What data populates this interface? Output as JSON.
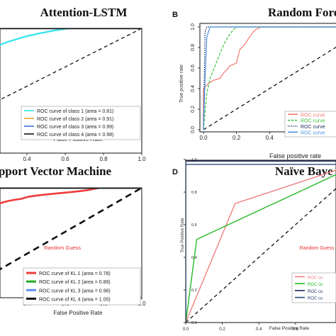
{
  "chart_data": [
    {
      "type": "line",
      "panel_label": "",
      "title": "Attention-LSTM",
      "xlabel": "False Positive Rate",
      "ylabel": "",
      "xlim": [
        0,
        1
      ],
      "ylim": [
        0,
        1
      ],
      "x_tick_labels": [
        "0.4",
        "0.6",
        "0.8",
        "1.0"
      ],
      "x_ticks": [
        0.4,
        0.6,
        0.8,
        1.0
      ],
      "series": [
        {
          "name": "ROC curve of class 1 (area = 0.81)",
          "color": "#2fe3ef",
          "x": [
            0,
            0.02,
            0.05,
            0.08,
            0.1,
            0.13,
            0.16,
            0.2,
            0.25,
            0.3,
            0.35,
            0.4,
            0.47,
            0.55,
            0.62,
            0.7,
            1.0
          ],
          "y": [
            0.62,
            0.64,
            0.66,
            0.68,
            0.69,
            0.72,
            0.75,
            0.78,
            0.82,
            0.86,
            0.89,
            0.92,
            0.95,
            0.98,
            1.0,
            1.0,
            1.0
          ]
        },
        {
          "name": "ROC curve of class 2 (area = 0.91)",
          "color": "#f0a030",
          "x": [
            0,
            0.02,
            1.0
          ],
          "y": [
            0.98,
            1.0,
            1.0
          ]
        },
        {
          "name": "ROC curve of class 3 (area = 0.99)",
          "color": "#3a6fd8",
          "x": [
            0,
            0.01,
            1.0
          ],
          "y": [
            0.99,
            1.0,
            1.0
          ]
        },
        {
          "name": "ROC curve of class 4 (area = 0.98)",
          "color": "#111111",
          "x": [
            0,
            0.01,
            1.0
          ],
          "y": [
            0.99,
            1.0,
            1.0
          ]
        }
      ],
      "diagonal": true,
      "legend": "bottom-right"
    },
    {
      "type": "line",
      "panel_label": "B",
      "title": "Random Fore",
      "xlabel": "False positive rate",
      "ylabel": "True positive rate",
      "xlim": [
        0,
        1
      ],
      "ylim": [
        0,
        1
      ],
      "x_tick_labels": [
        "0.0",
        "0.2",
        "0.4"
      ],
      "x_ticks": [
        0.0,
        0.2,
        0.4
      ],
      "y_tick_labels": [
        "0.0",
        "0.2",
        "0.4",
        "0.6",
        "0.8",
        "1.0"
      ],
      "y_ticks": [
        0.0,
        0.2,
        0.4,
        0.6,
        0.8,
        1.0
      ],
      "series": [
        {
          "name": "ROC curve",
          "color": "#f27a6e",
          "style": "solid",
          "x": [
            0,
            0.0,
            0.03,
            0.06,
            0.1,
            0.12,
            0.14,
            0.16,
            0.2,
            0.22,
            0.25,
            0.27,
            0.3,
            0.32,
            0.35,
            1.0
          ],
          "y": [
            0.0,
            0.4,
            0.45,
            0.48,
            0.5,
            0.55,
            0.58,
            0.62,
            0.65,
            0.78,
            0.83,
            0.88,
            0.95,
            0.98,
            1.0,
            1.0
          ]
        },
        {
          "name": "ROC curve",
          "color": "#3cc23c",
          "style": "dashed",
          "x": [
            0,
            0.02,
            0.04,
            0.06,
            0.08,
            0.1,
            0.12,
            0.14,
            0.16,
            0.18,
            0.2,
            1.0
          ],
          "y": [
            0,
            0.35,
            0.5,
            0.58,
            0.66,
            0.74,
            0.82,
            0.88,
            0.93,
            0.97,
            1.0,
            1.0
          ]
        },
        {
          "name": "ROC curve",
          "color": "#1a2a5a",
          "style": "dotted",
          "x": [
            0,
            0.01,
            0.02,
            1.0
          ],
          "y": [
            0,
            0.95,
            1.0,
            1.0
          ]
        },
        {
          "name": "ROC curve",
          "color": "#4a90e0",
          "style": "solid",
          "x": [
            0,
            0.01,
            0.02,
            0.04,
            1.0
          ],
          "y": [
            0,
            0.5,
            0.9,
            1.0,
            1.0
          ]
        }
      ],
      "diagonal": true,
      "legend": "bottom-right"
    },
    {
      "type": "line",
      "panel_label": "",
      "title": "Support Vector Machine",
      "xlabel": "False Positive Rate",
      "ylabel": "",
      "xlim": [
        0,
        1
      ],
      "ylim": [
        0,
        1
      ],
      "x_tick_labels": [
        "0.4",
        "0.6",
        "0.8",
        "1.0"
      ],
      "x_ticks": [
        0.4,
        0.6,
        0.8,
        1.0
      ],
      "annotation": "Random Guess",
      "series": [
        {
          "name": "ROC curve of KL 1 (area = 0.78)",
          "color": "#ee3b3b",
          "x": [
            0,
            0.02,
            0.04,
            0.07,
            0.1,
            0.12,
            0.14,
            0.16,
            0.18,
            0.2,
            0.23,
            0.26,
            0.3,
            0.33,
            0.37,
            0.41,
            0.45,
            0.5,
            0.56,
            0.62,
            0.68,
            0.72,
            0.78,
            1.0
          ],
          "y": [
            0.66,
            0.68,
            0.7,
            0.71,
            0.72,
            0.74,
            0.76,
            0.77,
            0.79,
            0.82,
            0.84,
            0.86,
            0.88,
            0.89,
            0.9,
            0.92,
            0.93,
            0.94,
            0.95,
            0.96,
            0.97,
            0.98,
            1.0,
            1.0
          ]
        },
        {
          "name": "ROC curve of KL 2 (area = 0.89)",
          "color": "#22aa22",
          "x": [
            0,
            0.01,
            1.0
          ],
          "y": [
            0.98,
            1.0,
            1.0
          ]
        },
        {
          "name": "ROC curve of KL 3 (area = 0.96)",
          "color": "#5b8ff0",
          "x": [
            0,
            0.01,
            1.0
          ],
          "y": [
            0.99,
            1.0,
            1.0
          ]
        },
        {
          "name": "ROC curve of KL 4 (area = 1.00)",
          "color": "#111111",
          "x": [
            0,
            1.0
          ],
          "y": [
            1.0,
            1.0
          ]
        }
      ],
      "diagonal": true,
      "legend": "bottom-right"
    },
    {
      "type": "line",
      "panel_label": "D",
      "title": "Naïve Baye",
      "xlabel": "False Positive Rate",
      "ylabel": "True Positive Rate",
      "xlim": [
        0,
        1
      ],
      "ylim": [
        0,
        1
      ],
      "x_tick_labels": [
        "0.0",
        "0.2",
        "0.4",
        "0.6"
      ],
      "x_ticks": [
        0.0,
        0.2,
        0.4,
        0.6
      ],
      "y_tick_labels": [
        "0.0",
        "0.2",
        "0.4",
        "0.6",
        "0.8",
        "1.0"
      ],
      "y_ticks": [
        0.0,
        0.2,
        0.4,
        0.6,
        0.8,
        1.0
      ],
      "annotation": "Random Guess",
      "series": [
        {
          "name": "ROC cu",
          "color": "#f28080",
          "x": [
            0,
            0.27,
            1.0
          ],
          "y": [
            0,
            0.73,
            1.0
          ]
        },
        {
          "name": "ROC cu",
          "color": "#22bb22",
          "x": [
            0,
            0.06,
            1.0
          ],
          "y": [
            0,
            0.51,
            1.0
          ]
        },
        {
          "name": "ROC cu",
          "color": "#1a2a5a",
          "x": [
            0,
            0.0,
            1.0
          ],
          "y": [
            0,
            0.99,
            0.99
          ]
        },
        {
          "name": "ROC cu",
          "color": "#2a4a7a",
          "x": [
            0,
            0.0,
            1.0
          ],
          "y": [
            0,
            0.97,
            0.97
          ]
        }
      ],
      "diagonal": true,
      "legend": "bottom-right"
    }
  ]
}
